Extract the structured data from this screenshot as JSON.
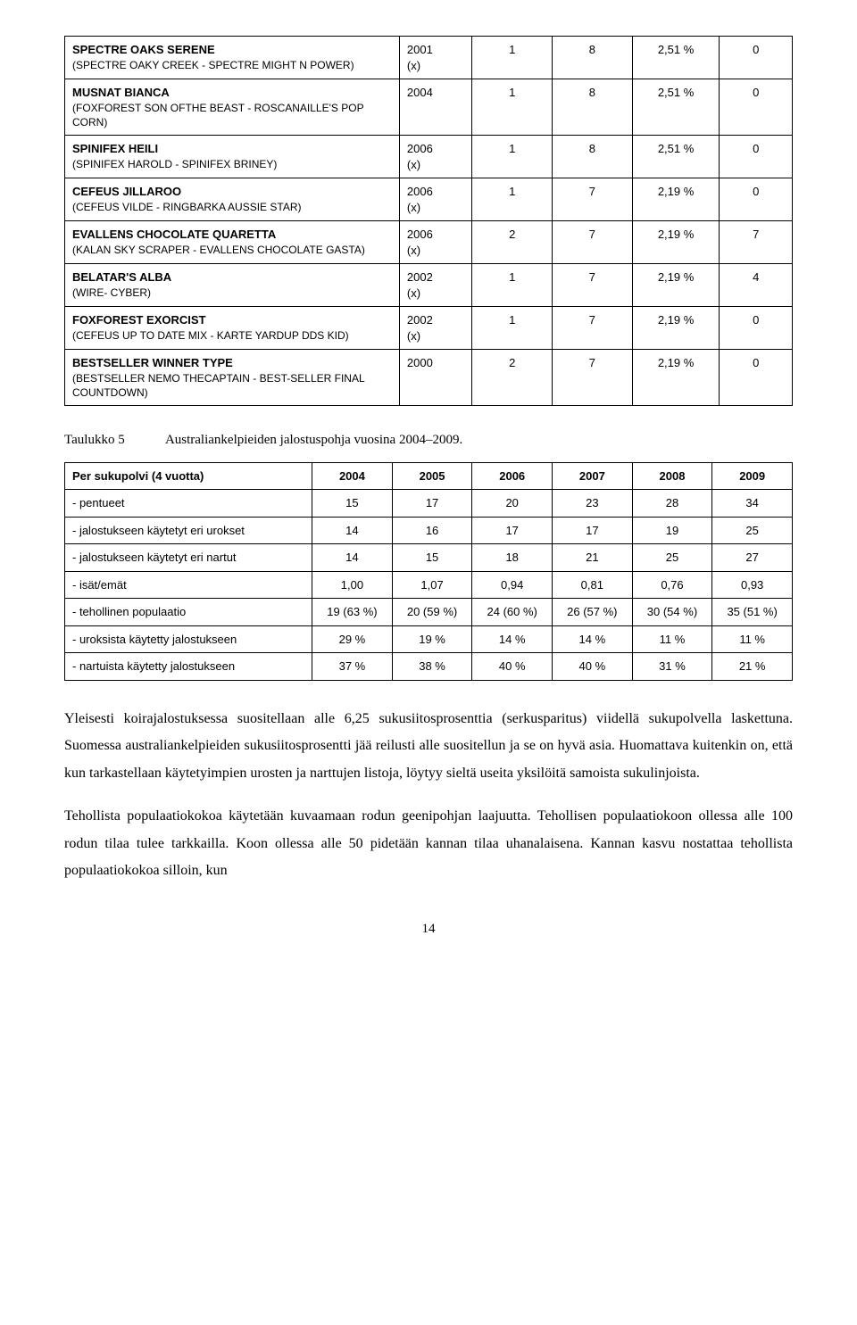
{
  "table1": {
    "rows": [
      {
        "name": "SPECTRE OAKS SERENE",
        "sub": "(SPECTRE OAKY CREEK - SPECTRE MIGHT N POWER)",
        "year": "2001\n(x)",
        "c1": "1",
        "c2": "8",
        "pct": "2,51 %",
        "last": "0"
      },
      {
        "name": "MUSNAT BIANCA",
        "sub": "(FOXFOREST SON OFTHE BEAST - ROSCANAILLE'S POP CORN)",
        "year": "2004",
        "c1": "1",
        "c2": "8",
        "pct": "2,51 %",
        "last": "0"
      },
      {
        "name": "SPINIFEX HEILI",
        "sub": "(SPINIFEX HAROLD - SPINIFEX BRINEY)",
        "year": "2006\n(x)",
        "c1": "1",
        "c2": "8",
        "pct": "2,51 %",
        "last": "0"
      },
      {
        "name": "CEFEUS JILLAROO",
        "sub": "(CEFEUS VILDE - RINGBARKA AUSSIE STAR)",
        "year": "2006\n(x)",
        "c1": "1",
        "c2": "7",
        "pct": "2,19 %",
        "last": "0"
      },
      {
        "name": "EVALLENS CHOCOLATE QUARETTA",
        "sub": "(KALAN SKY SCRAPER - EVALLENS CHOCOLATE GASTA)",
        "year": "2006\n(x)",
        "c1": "2",
        "c2": "7",
        "pct": "2,19 %",
        "last": "7"
      },
      {
        "name": "BELATAR'S ALBA",
        "sub": "(WIRE- CYBER)",
        "year": "2002\n(x)",
        "c1": "1",
        "c2": "7",
        "pct": "2,19 %",
        "last": "4"
      },
      {
        "name": "FOXFOREST EXORCIST",
        "sub": "(CEFEUS UP TO DATE MIX - KARTE YARDUP DDS KID)",
        "year": "2002\n(x)",
        "c1": "1",
        "c2": "7",
        "pct": "2,19 %",
        "last": "0"
      },
      {
        "name": "BESTSELLER WINNER TYPE",
        "sub": "(BESTSELLER NEMO THECAPTAIN - BEST-SELLER FINAL COUNTDOWN)",
        "year": "2000",
        "c1": "2",
        "c2": "7",
        "pct": "2,19 %",
        "last": "0"
      }
    ]
  },
  "caption": {
    "label": "Taulukko 5",
    "text": "Australiankelpieiden jalostuspohja vuosina 2004–2009."
  },
  "table2": {
    "header": [
      "Per sukupolvi (4 vuotta)",
      "2004",
      "2005",
      "2006",
      "2007",
      "2008",
      "2009"
    ],
    "rows": [
      {
        "label": "- pentueet",
        "v": [
          "15",
          "17",
          "20",
          "23",
          "28",
          "34"
        ]
      },
      {
        "label": "- jalostukseen käytetyt eri urokset",
        "v": [
          "14",
          "16",
          "17",
          "17",
          "19",
          "25"
        ]
      },
      {
        "label": "- jalostukseen käytetyt eri nartut",
        "v": [
          "14",
          "15",
          "18",
          "21",
          "25",
          "27"
        ]
      },
      {
        "label": "- isät/emät",
        "v": [
          "1,00",
          "1,07",
          "0,94",
          "0,81",
          "0,76",
          "0,93"
        ]
      },
      {
        "label": "- tehollinen populaatio",
        "v": [
          "19 (63 %)",
          "20 (59 %)",
          "24 (60 %)",
          "26 (57 %)",
          "30 (54 %)",
          "35 (51 %)"
        ]
      },
      {
        "label": "- uroksista käytetty jalostukseen",
        "v": [
          "29 %",
          "19 %",
          "14 %",
          "14 %",
          "11 %",
          "11 %"
        ]
      },
      {
        "label": "- nartuista käytetty jalostukseen",
        "v": [
          "37 %",
          "38 %",
          "40 %",
          "40 %",
          "31 %",
          "21 %"
        ]
      }
    ]
  },
  "paragraphs": [
    "Yleisesti koirajalostuksessa suositellaan alle 6,25 sukusiitosprosenttia (serkusparitus) viidellä sukupolvella laskettuna. Suomessa australiankelpieiden sukusiitosprosentti jää reilusti alle suositellun ja se on hyvä asia. Huomattava kuitenkin on, että kun tarkastellaan käytetyimpien urosten ja narttujen listoja, löytyy sieltä useita yksilöitä samoista sukulinjoista.",
    "Tehollista populaatiokokoa käytetään kuvaamaan rodun geenipohjan laajuutta. Tehollisen populaatiokoon ollessa alle 100 rodun tilaa tulee tarkkailla. Koon ollessa alle 50 pidetään kannan tilaa uhanalaisena. Kannan kasvu nostattaa tehollista populaatiokokoa silloin, kun"
  ],
  "page_number": "14"
}
